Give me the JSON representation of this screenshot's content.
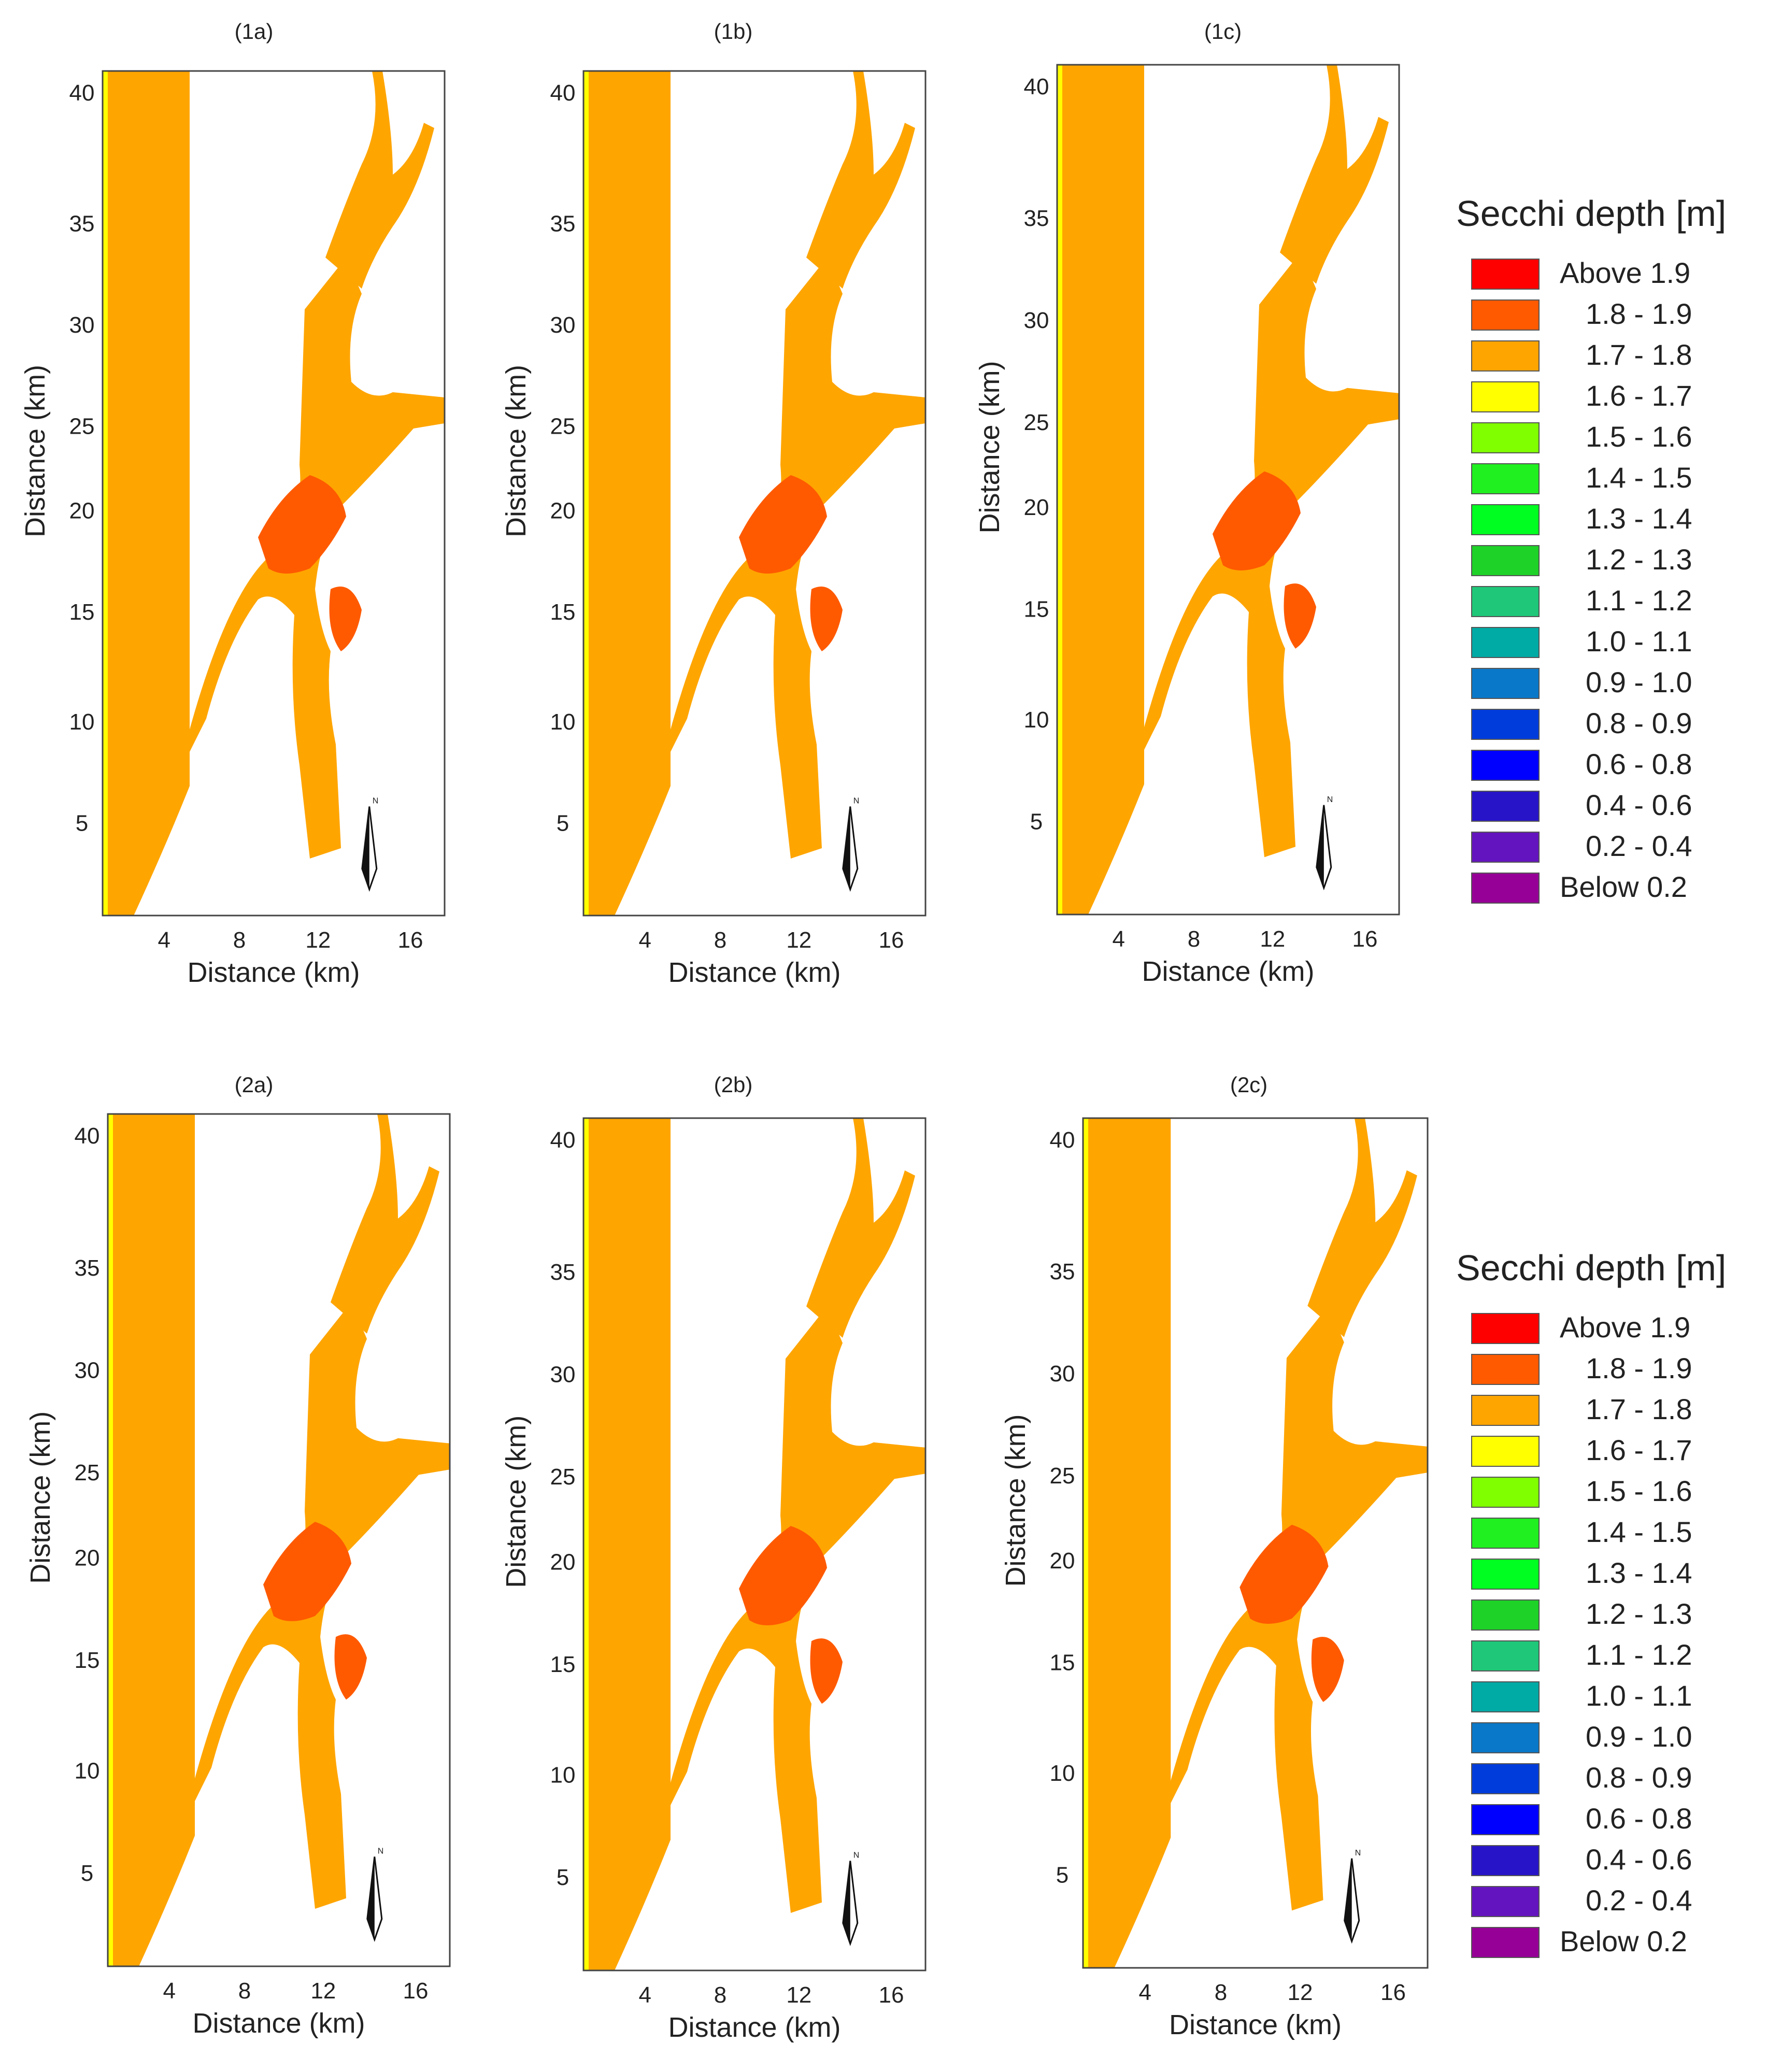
{
  "panels": [
    {
      "id": "1a",
      "label": "(1a)"
    },
    {
      "id": "1b",
      "label": "(1b)"
    },
    {
      "id": "1c",
      "label": "(1c)"
    },
    {
      "id": "2a",
      "label": "(2a)"
    },
    {
      "id": "2b",
      "label": "(2b)"
    },
    {
      "id": "2c",
      "label": "(2c)"
    }
  ],
  "axes": {
    "x_label": "Distance (km)",
    "y_label": "Distance (km)",
    "x_ticks": [
      "4",
      "8",
      "12",
      "16"
    ],
    "y_ticks": [
      "40",
      "35",
      "30",
      "25",
      "20",
      "15",
      "10",
      "5"
    ],
    "x_range_km": [
      1,
      18
    ],
    "y_range_km": [
      0,
      42
    ]
  },
  "legend": {
    "title": "Secchi depth [m]",
    "entries": [
      {
        "label": "Above 1.9",
        "color": "#ff0000"
      },
      {
        "label": "1.8 - 1.9",
        "color": "#ff5a00"
      },
      {
        "label": "1.7 - 1.8",
        "color": "#ffa500"
      },
      {
        "label": "1.6 - 1.7",
        "color": "#ffff00"
      },
      {
        "label": "1.5 - 1.6",
        "color": "#80ff00"
      },
      {
        "label": "1.4 - 1.5",
        "color": "#20f020"
      },
      {
        "label": "1.3 - 1.4",
        "color": "#00ff20"
      },
      {
        "label": "1.2 - 1.3",
        "color": "#1ed228"
      },
      {
        "label": "1.1 - 1.2",
        "color": "#1ec878"
      },
      {
        "label": "1.0 - 1.1",
        "color": "#00aaa5"
      },
      {
        "label": "0.9 - 1.0",
        "color": "#0a78c8"
      },
      {
        "label": "0.8 - 0.9",
        "color": "#003cdc"
      },
      {
        "label": "0.6 - 0.8",
        "color": "#0000ff"
      },
      {
        "label": "0.4 - 0.6",
        "color": "#2814c8"
      },
      {
        "label": "0.2 - 0.4",
        "color": "#6414be"
      },
      {
        "label": "Below 0.2",
        "color": "#960096"
      }
    ]
  },
  "north_arrow": {
    "label": "N"
  }
}
